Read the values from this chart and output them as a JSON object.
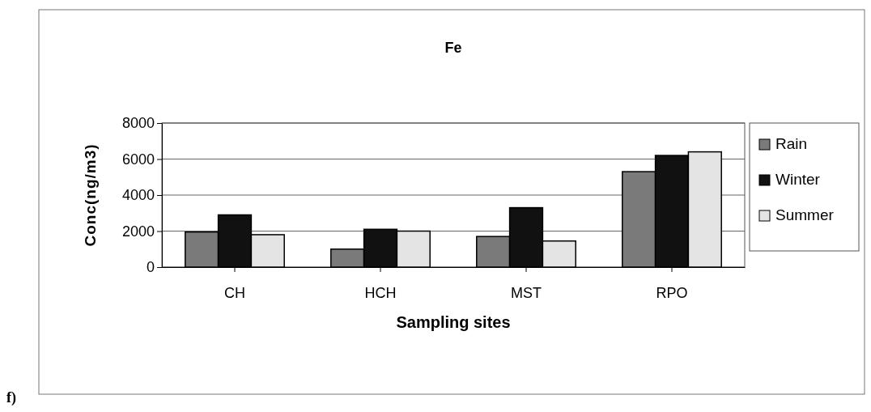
{
  "chart_data": {
    "type": "bar",
    "title": "Fe",
    "xlabel": "Sampling sites",
    "ylabel": "Conc(ng/m3)",
    "categories": [
      "CH",
      "HCH",
      "MST",
      "RPO"
    ],
    "series": [
      {
        "name": "Rain",
        "color": "#7a7a7a",
        "values": [
          1950,
          1000,
          1700,
          5300
        ]
      },
      {
        "name": "Winter",
        "color": "#111111",
        "values": [
          2900,
          2100,
          3300,
          6200
        ]
      },
      {
        "name": "Summer",
        "color": "#e4e4e4",
        "values": [
          1800,
          2000,
          1450,
          6400
        ]
      }
    ],
    "ylim": [
      0,
      8000
    ],
    "yticks": [
      0,
      2000,
      4000,
      6000,
      8000
    ],
    "grid": "y",
    "legend": "right",
    "annotations": [
      "f)"
    ]
  }
}
